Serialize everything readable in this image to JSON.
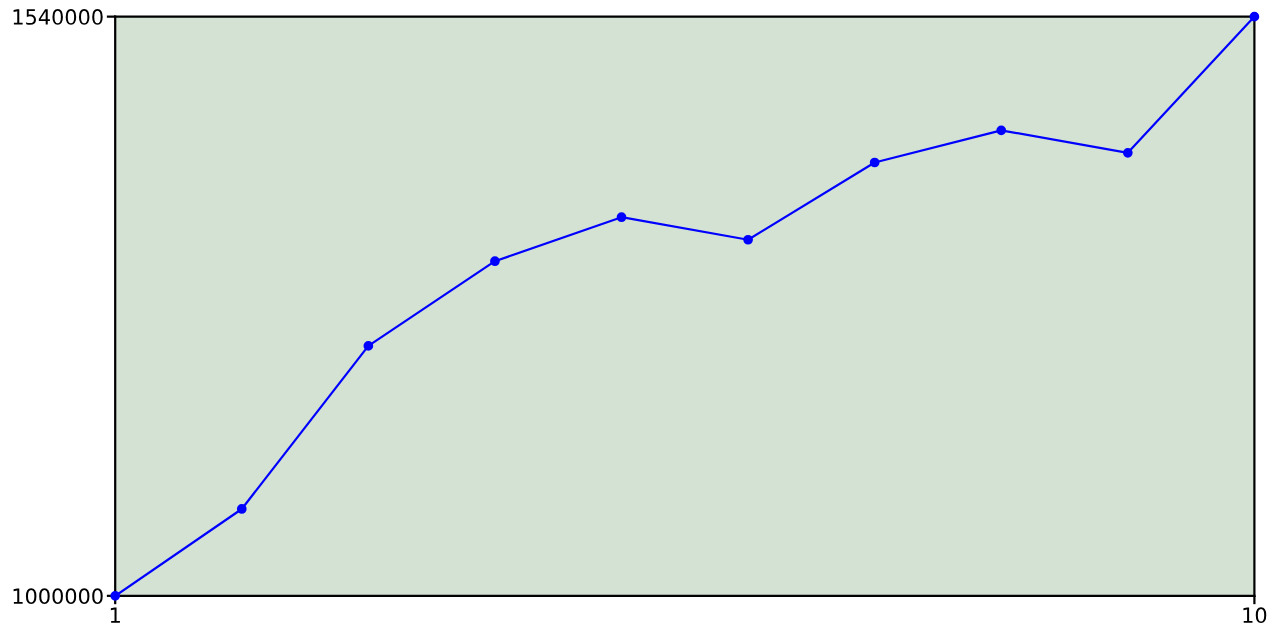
{
  "chart_data": {
    "type": "line",
    "x": [
      1,
      2,
      3,
      4,
      5,
      6,
      7,
      8,
      9,
      10
    ],
    "series": [
      {
        "color": "#0000ff",
        "values": [
          1000000,
          1081000,
          1233000,
          1312000,
          1353000,
          1332000,
          1404000,
          1434000,
          1413000,
          1540000
        ]
      }
    ],
    "xlim": [
      1,
      10
    ],
    "ylim": [
      1000000,
      1540000
    ],
    "xticks": [
      1,
      10
    ],
    "yticks": [
      1000000,
      1540000
    ],
    "grid": false,
    "legend": false,
    "marker": "circle",
    "line_style": "solid"
  }
}
